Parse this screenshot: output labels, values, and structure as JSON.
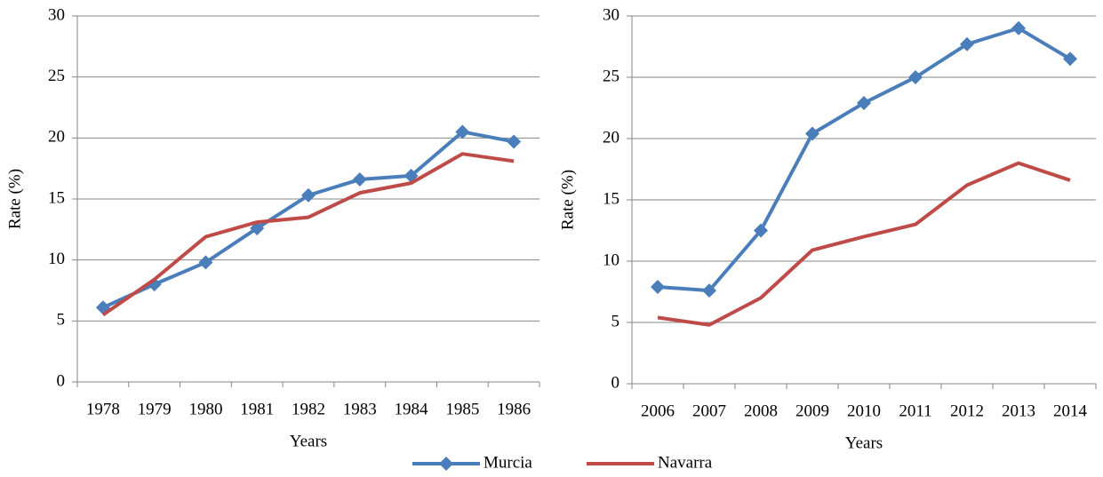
{
  "chart_data": [
    {
      "type": "line",
      "x_label": "Years",
      "y_label": "Rate (%)",
      "categories": [
        "1978",
        "1979",
        "1980",
        "1981",
        "1982",
        "1983",
        "1984",
        "1985",
        "1986"
      ],
      "ylim": [
        0,
        30
      ],
      "yticks": [
        0,
        5,
        10,
        15,
        20,
        25,
        30
      ],
      "grid": true,
      "series": [
        {
          "name": "Murcia",
          "color": "#4a7ebb",
          "marker": "diamond",
          "values": [
            6.1,
            8.0,
            9.8,
            12.6,
            15.3,
            16.6,
            16.9,
            20.5,
            19.7
          ]
        },
        {
          "name": "Navarra",
          "color": "#be4b48",
          "values": [
            5.5,
            8.4,
            11.9,
            13.1,
            13.5,
            15.5,
            16.3,
            18.7,
            18.1
          ]
        }
      ]
    },
    {
      "type": "line",
      "x_label": "Years",
      "y_label": "Rate (%)",
      "categories": [
        "2006",
        "2007",
        "2008",
        "2009",
        "2010",
        "2011",
        "2012",
        "2013",
        "2014"
      ],
      "ylim": [
        0,
        30
      ],
      "yticks": [
        0,
        5,
        10,
        15,
        20,
        25,
        30
      ],
      "grid": true,
      "series": [
        {
          "color": "#4a7ebb",
          "marker": "diamond",
          "values": [
            7.9,
            7.6,
            12.5,
            20.4,
            22.9,
            25.0,
            27.7,
            29.0,
            26.5
          ]
        },
        {
          "color": "#be4b48",
          "values": [
            5.4,
            4.8,
            7.0,
            10.9,
            12.0,
            13.0,
            16.2,
            18.0,
            16.6
          ]
        }
      ]
    }
  ]
}
